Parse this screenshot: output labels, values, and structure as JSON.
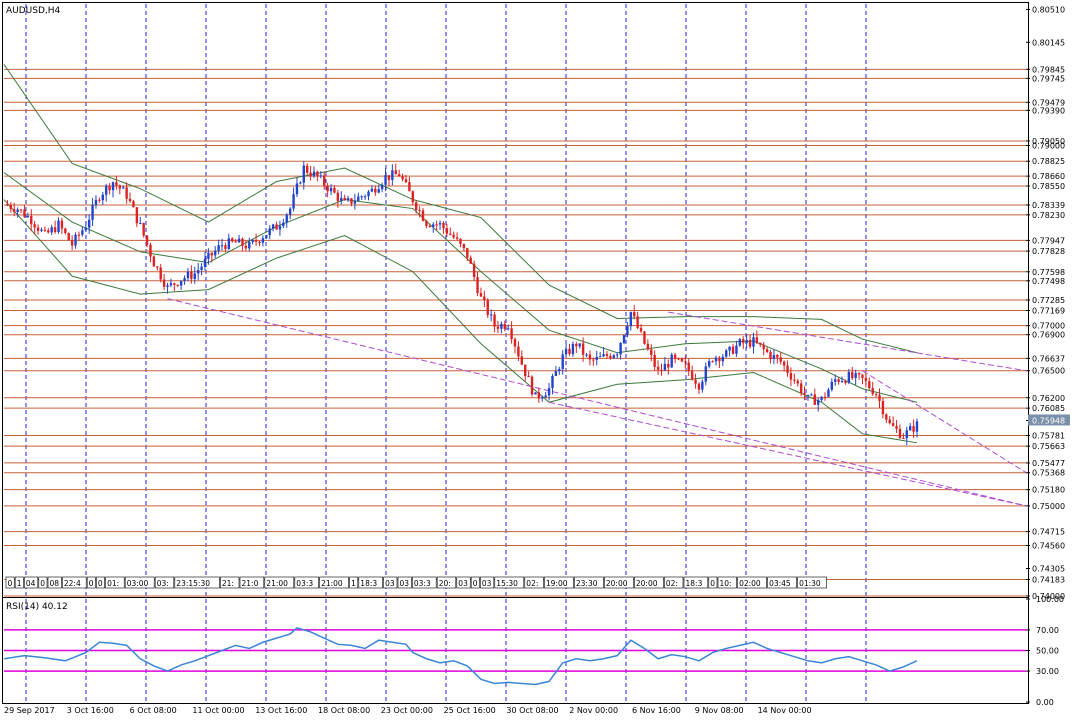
{
  "chart_data": {
    "type": "candlestick",
    "symbol_label": "AUDUSD,H4",
    "price_axis": {
      "ylim": [
        0.74,
        0.8057
      ],
      "ticks": [
        "0.80510",
        "0.80145",
        "0.79845",
        "0.79745",
        "0.79479",
        "0.79390",
        "0.79050",
        "0.79000",
        "0.78825",
        "0.78660",
        "0.78550",
        "0.78339",
        "0.78230",
        "0.77947",
        "0.77828",
        "0.77598",
        "0.77498",
        "0.77285",
        "0.77169",
        "0.77000",
        "0.76900",
        "0.76637",
        "0.76500",
        "0.76200",
        "0.76085",
        "0.75948",
        "0.75781",
        "0.75663",
        "0.75477",
        "0.75368",
        "0.75180",
        "0.75000",
        "0.74715",
        "0.74560",
        "0.74305",
        "0.74183",
        "0.74000"
      ],
      "current_price": "0.75948"
    },
    "horizontal_levels": [
      0.79845,
      0.79745,
      0.79479,
      0.7939,
      0.7905,
      0.79,
      0.78825,
      0.7866,
      0.7855,
      0.78339,
      0.7823,
      0.77947,
      0.77828,
      0.77598,
      0.77498,
      0.77285,
      0.77169,
      0.77,
      0.769,
      0.76637,
      0.765,
      0.762,
      0.76085,
      0.75781,
      0.75663,
      0.75477,
      0.75368,
      0.7518,
      0.75,
      0.74715,
      0.7456,
      0.74183,
      0.74
    ],
    "time_axis": [
      "29 Sep 2017",
      "3 Oct 16:00",
      "6 Oct 08:00",
      "11 Oct 00:00",
      "13 Oct 16:00",
      "18 Oct 08:00",
      "23 Oct 00:00",
      "25 Oct 16:00",
      "30 Oct 08:00",
      "2 Nov 00:00",
      "6 Nov 16:00",
      "9 Nov 08:00",
      "14 Nov 00:00"
    ],
    "close_path": [
      [
        0,
        0.7835
      ],
      [
        4,
        0.783
      ],
      [
        8,
        0.7818
      ],
      [
        12,
        0.78
      ],
      [
        16,
        0.7812
      ],
      [
        20,
        0.779
      ],
      [
        24,
        0.7812
      ],
      [
        28,
        0.7845
      ],
      [
        32,
        0.786
      ],
      [
        36,
        0.7845
      ],
      [
        40,
        0.781
      ],
      [
        44,
        0.777
      ],
      [
        48,
        0.7742
      ],
      [
        52,
        0.7752
      ],
      [
        56,
        0.7758
      ],
      [
        60,
        0.7775
      ],
      [
        64,
        0.779
      ],
      [
        68,
        0.7792
      ],
      [
        72,
        0.7788
      ],
      [
        76,
        0.78
      ],
      [
        80,
        0.781
      ],
      [
        84,
        0.783
      ],
      [
        88,
        0.7875
      ],
      [
        92,
        0.7865
      ],
      [
        96,
        0.785
      ],
      [
        100,
        0.7835
      ],
      [
        104,
        0.7842
      ],
      [
        108,
        0.785
      ],
      [
        112,
        0.7865
      ],
      [
        116,
        0.7868
      ],
      [
        120,
        0.784
      ],
      [
        124,
        0.7815
      ],
      [
        128,
        0.7812
      ],
      [
        132,
        0.7798
      ],
      [
        136,
        0.7778
      ],
      [
        140,
        0.773
      ],
      [
        144,
        0.77
      ],
      [
        148,
        0.7702
      ],
      [
        152,
        0.7658
      ],
      [
        156,
        0.762
      ],
      [
        160,
        0.763
      ],
      [
        164,
        0.7665
      ],
      [
        168,
        0.768
      ],
      [
        172,
        0.766
      ],
      [
        176,
        0.7665
      ],
      [
        180,
        0.7672
      ],
      [
        184,
        0.7715
      ],
      [
        188,
        0.768
      ],
      [
        192,
        0.7648
      ],
      [
        196,
        0.7662
      ],
      [
        200,
        0.7655
      ],
      [
        204,
        0.7635
      ],
      [
        208,
        0.7665
      ],
      [
        212,
        0.7668
      ],
      [
        216,
        0.768
      ],
      [
        220,
        0.7682
      ],
      [
        224,
        0.767
      ],
      [
        228,
        0.766
      ],
      [
        232,
        0.764
      ],
      [
        236,
        0.7618
      ],
      [
        240,
        0.7618
      ],
      [
        244,
        0.764
      ],
      [
        248,
        0.7643
      ],
      [
        252,
        0.764
      ],
      [
        256,
        0.7625
      ],
      [
        260,
        0.759
      ],
      [
        264,
        0.7578
      ],
      [
        268,
        0.759
      ]
    ],
    "bollinger_bands": {
      "upper": [
        [
          0,
          0.799
        ],
        [
          20,
          0.788
        ],
        [
          40,
          0.7852
        ],
        [
          60,
          0.7815
        ],
        [
          80,
          0.786
        ],
        [
          100,
          0.7875
        ],
        [
          120,
          0.784
        ],
        [
          140,
          0.782
        ],
        [
          160,
          0.7745
        ],
        [
          180,
          0.7708
        ],
        [
          200,
          0.771
        ],
        [
          220,
          0.771
        ],
        [
          240,
          0.7707
        ],
        [
          252,
          0.7685
        ],
        [
          268,
          0.767
        ]
      ],
      "middle": [
        [
          0,
          0.787
        ],
        [
          20,
          0.7815
        ],
        [
          40,
          0.7782
        ],
        [
          60,
          0.777
        ],
        [
          80,
          0.781
        ],
        [
          100,
          0.784
        ],
        [
          120,
          0.783
        ],
        [
          140,
          0.776
        ],
        [
          160,
          0.7695
        ],
        [
          180,
          0.767
        ],
        [
          200,
          0.768
        ],
        [
          220,
          0.7683
        ],
        [
          240,
          0.7652
        ],
        [
          252,
          0.763
        ],
        [
          268,
          0.7615
        ]
      ],
      "lower": [
        [
          0,
          0.784
        ],
        [
          20,
          0.7755
        ],
        [
          40,
          0.7735
        ],
        [
          60,
          0.774
        ],
        [
          80,
          0.7775
        ],
        [
          100,
          0.78
        ],
        [
          120,
          0.776
        ],
        [
          140,
          0.768
        ],
        [
          160,
          0.7615
        ],
        [
          180,
          0.7635
        ],
        [
          200,
          0.764
        ],
        [
          220,
          0.7648
        ],
        [
          240,
          0.7615
        ],
        [
          252,
          0.758
        ],
        [
          268,
          0.757
        ]
      ]
    },
    "trendlines": [
      {
        "from": [
          48,
          0.773
        ],
        "to": [
          300,
          0.75
        ],
        "color": "#b04ad0"
      },
      {
        "from": [
          160,
          0.7615
        ],
        "to": [
          300,
          0.75
        ],
        "color": "#b04ad0"
      },
      {
        "from": [
          195,
          0.7715
        ],
        "to": [
          300,
          0.765
        ],
        "color": "#b04ad0"
      },
      {
        "from": [
          252,
          0.765
        ],
        "to": [
          300,
          0.7537
        ],
        "color": "#b04ad0"
      }
    ],
    "time_labels_strip": [
      "0",
      "1",
      "04",
      "0",
      "08",
      "22:4",
      "0",
      "0",
      "01:",
      "03:00",
      "03:",
      "23:15:30",
      "21:",
      "21:0",
      "21:00",
      "03:3",
      "21:00",
      "1",
      "18:3",
      "03",
      "03",
      "03:3",
      "20:",
      "03",
      "0",
      "03",
      "15:30",
      "02:",
      "19:00",
      "23:30",
      "20:00",
      "20:00",
      "02:",
      "18:3",
      "0",
      "10:",
      "02:00",
      "03:45",
      "01:30"
    ]
  },
  "rsi_panel": {
    "label": "RSI(14) 40.12",
    "ylim": [
      0,
      100
    ],
    "ticks": [
      "100.00",
      "70.00",
      "50.00",
      "30.00",
      "0.00"
    ],
    "levels": [
      70,
      50,
      30
    ],
    "values": [
      [
        0,
        42
      ],
      [
        6,
        45
      ],
      [
        12,
        43
      ],
      [
        18,
        40
      ],
      [
        24,
        48
      ],
      [
        28,
        58
      ],
      [
        32,
        57
      ],
      [
        36,
        55
      ],
      [
        40,
        42
      ],
      [
        44,
        35
      ],
      [
        48,
        30
      ],
      [
        52,
        36
      ],
      [
        56,
        40
      ],
      [
        60,
        45
      ],
      [
        64,
        50
      ],
      [
        68,
        55
      ],
      [
        72,
        52
      ],
      [
        76,
        58
      ],
      [
        80,
        62
      ],
      [
        84,
        66
      ],
      [
        86,
        72
      ],
      [
        90,
        68
      ],
      [
        94,
        62
      ],
      [
        98,
        56
      ],
      [
        102,
        55
      ],
      [
        106,
        52
      ],
      [
        110,
        60
      ],
      [
        114,
        58
      ],
      [
        118,
        56
      ],
      [
        120,
        48
      ],
      [
        124,
        42
      ],
      [
        128,
        38
      ],
      [
        132,
        40
      ],
      [
        136,
        35
      ],
      [
        140,
        22
      ],
      [
        144,
        18
      ],
      [
        148,
        19
      ],
      [
        152,
        18
      ],
      [
        156,
        17
      ],
      [
        160,
        20
      ],
      [
        164,
        38
      ],
      [
        168,
        42
      ],
      [
        172,
        40
      ],
      [
        176,
        42
      ],
      [
        180,
        45
      ],
      [
        184,
        60
      ],
      [
        188,
        52
      ],
      [
        192,
        42
      ],
      [
        196,
        46
      ],
      [
        200,
        44
      ],
      [
        204,
        40
      ],
      [
        208,
        48
      ],
      [
        212,
        52
      ],
      [
        216,
        55
      ],
      [
        220,
        58
      ],
      [
        224,
        52
      ],
      [
        228,
        48
      ],
      [
        232,
        44
      ],
      [
        236,
        40
      ],
      [
        240,
        38
      ],
      [
        244,
        42
      ],
      [
        248,
        44
      ],
      [
        252,
        40
      ],
      [
        256,
        36
      ],
      [
        260,
        30
      ],
      [
        264,
        34
      ],
      [
        268,
        40
      ]
    ]
  },
  "colors": {
    "bull": "#2244cc",
    "bear": "#dd2222",
    "level_line": "#c8603a",
    "grid_dash": "#2222dd",
    "bollinger": "#3a7a3a",
    "rsi_line": "#3a86d6",
    "rsi_level": "#e000e0",
    "trendline": "#b04ad0",
    "current_price_bg": "#7a8fa8"
  }
}
